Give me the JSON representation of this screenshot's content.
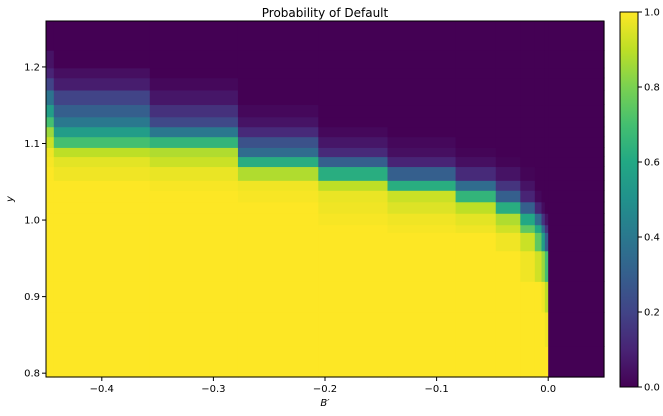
{
  "chart_data": {
    "type": "heatmap",
    "title": "Probability of Default",
    "xlabel": "B′",
    "ylabel": "y",
    "xlim": [
      -0.45,
      0.05
    ],
    "ylim": [
      0.795,
      1.26
    ],
    "x_ticks": [
      {
        "value": -0.4,
        "label": "−0.4"
      },
      {
        "value": -0.3,
        "label": "−0.3"
      },
      {
        "value": -0.2,
        "label": "−0.2"
      },
      {
        "value": -0.1,
        "label": "−0.1"
      },
      {
        "value": 0.0,
        "label": "0.0"
      }
    ],
    "y_ticks": [
      {
        "value": 0.8,
        "label": "0.8"
      },
      {
        "value": 0.9,
        "label": "0.9"
      },
      {
        "value": 1.0,
        "label": "1.0"
      },
      {
        "value": 1.1,
        "label": "1.1"
      },
      {
        "value": 1.2,
        "label": "1.2"
      }
    ],
    "colorbar": {
      "colormap": "viridis",
      "range": [
        0.0,
        1.0
      ],
      "ticks": [
        {
          "value": 0.0,
          "label": "0.0"
        },
        {
          "value": 0.2,
          "label": "0.2"
        },
        {
          "value": 0.4,
          "label": "0.4"
        },
        {
          "value": 0.6,
          "label": "0.6"
        },
        {
          "value": 0.8,
          "label": "0.8"
        },
        {
          "value": 1.0,
          "label": "1.0"
        }
      ]
    },
    "x_edges": [
      -0.45,
      -0.443,
      -0.357,
      -0.278,
      -0.206,
      -0.144,
      -0.083,
      -0.047,
      -0.025,
      -0.012,
      -0.006,
      -0.003,
      0.0,
      0.05
    ],
    "y_edges": [
      0.795,
      0.835,
      0.88,
      0.92,
      0.96,
      0.984,
      0.994,
      1.009,
      1.024,
      1.039,
      1.052,
      1.07,
      1.083,
      1.095,
      1.109,
      1.122,
      1.135,
      1.151,
      1.17,
      1.186,
      1.199,
      1.222,
      1.26
    ],
    "z": [
      [
        1.0,
        1.0,
        1.0,
        1.0,
        1.0,
        1.0,
        1.0,
        1.0,
        1.0,
        1.0,
        1.0,
        1.0,
        0.0
      ],
      [
        1.0,
        1.0,
        1.0,
        1.0,
        1.0,
        1.0,
        1.0,
        1.0,
        1.0,
        1.0,
        1.0,
        0.98,
        0.0
      ],
      [
        1.0,
        1.0,
        1.0,
        1.0,
        1.0,
        1.0,
        1.0,
        1.0,
        1.0,
        1.0,
        0.98,
        0.9,
        0.0
      ],
      [
        1.0,
        1.0,
        1.0,
        1.0,
        1.0,
        1.0,
        1.0,
        1.0,
        0.98,
        0.93,
        0.85,
        0.7,
        0.0
      ],
      [
        1.0,
        1.0,
        1.0,
        1.0,
        1.0,
        1.0,
        1.0,
        0.98,
        0.92,
        0.75,
        0.55,
        0.3,
        0.0
      ],
      [
        1.0,
        1.0,
        1.0,
        1.0,
        1.0,
        0.99,
        0.98,
        0.93,
        0.75,
        0.6,
        0.35,
        0.15,
        0.0
      ],
      [
        1.0,
        1.0,
        1.0,
        1.0,
        0.99,
        0.98,
        0.96,
        0.88,
        0.6,
        0.35,
        0.15,
        0.05,
        0.0
      ],
      [
        1.0,
        1.0,
        1.0,
        1.0,
        0.98,
        0.95,
        0.9,
        0.62,
        0.3,
        0.1,
        0.03,
        0.0,
        0.0
      ],
      [
        1.0,
        1.0,
        1.0,
        0.99,
        0.97,
        0.92,
        0.65,
        0.3,
        0.1,
        0.02,
        0.0,
        0.0,
        0.0
      ],
      [
        1.0,
        1.0,
        0.99,
        0.98,
        0.9,
        0.62,
        0.35,
        0.15,
        0.05,
        0.0,
        0.0,
        0.0,
        0.0
      ],
      [
        1.0,
        0.98,
        0.97,
        0.88,
        0.62,
        0.3,
        0.12,
        0.05,
        0.01,
        0.0,
        0.0,
        0.0,
        0.0
      ],
      [
        0.99,
        0.96,
        0.92,
        0.62,
        0.3,
        0.1,
        0.04,
        0.01,
        0.0,
        0.0,
        0.0,
        0.0,
        0.0
      ],
      [
        0.98,
        0.9,
        0.88,
        0.35,
        0.12,
        0.04,
        0.01,
        0.0,
        0.0,
        0.0,
        0.0,
        0.0,
        0.0
      ],
      [
        0.92,
        0.7,
        0.65,
        0.25,
        0.06,
        0.02,
        0.0,
        0.0,
        0.0,
        0.0,
        0.0,
        0.0,
        0.0
      ],
      [
        0.85,
        0.55,
        0.4,
        0.12,
        0.02,
        0.0,
        0.0,
        0.0,
        0.0,
        0.0,
        0.0,
        0.0,
        0.0
      ],
      [
        0.7,
        0.4,
        0.22,
        0.05,
        0.0,
        0.0,
        0.0,
        0.0,
        0.0,
        0.0,
        0.0,
        0.0,
        0.0
      ],
      [
        0.55,
        0.3,
        0.14,
        0.02,
        0.0,
        0.0,
        0.0,
        0.0,
        0.0,
        0.0,
        0.0,
        0.0,
        0.0
      ],
      [
        0.38,
        0.2,
        0.06,
        0.0,
        0.0,
        0.0,
        0.0,
        0.0,
        0.0,
        0.0,
        0.0,
        0.0,
        0.0
      ],
      [
        0.2,
        0.08,
        0.02,
        0.0,
        0.0,
        0.0,
        0.0,
        0.0,
        0.0,
        0.0,
        0.0,
        0.0,
        0.0
      ],
      [
        0.1,
        0.04,
        0.0,
        0.0,
        0.0,
        0.0,
        0.0,
        0.0,
        0.0,
        0.0,
        0.0,
        0.0,
        0.0
      ],
      [
        0.05,
        0.0,
        0.0,
        0.0,
        0.0,
        0.0,
        0.0,
        0.0,
        0.0,
        0.0,
        0.0,
        0.0,
        0.0
      ],
      [
        0.0,
        0.0,
        0.0,
        0.0,
        0.0,
        0.0,
        0.0,
        0.0,
        0.0,
        0.0,
        0.0,
        0.0,
        0.0
      ]
    ]
  }
}
